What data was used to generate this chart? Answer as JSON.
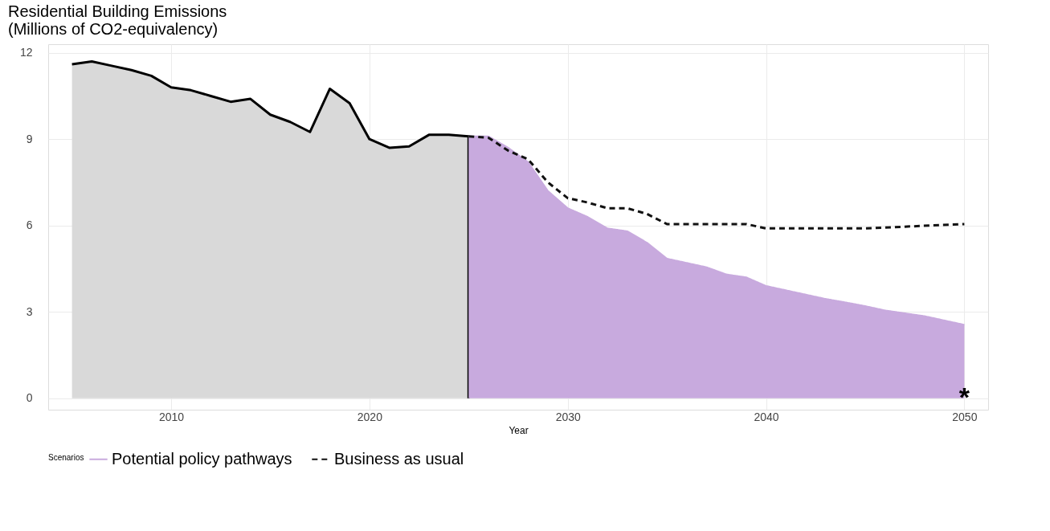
{
  "chart_data": {
    "type": "area",
    "title": [
      "Residential Building Emissions",
      "(Millions of CO2-equivalency)"
    ],
    "xlabel": "Year",
    "legend_title": "Scenarios",
    "series": [
      {
        "color": "#d9d9d9",
        "line_style": "solid",
        "x": [
          2005,
          2006,
          2007,
          2008,
          2009,
          2010,
          2011,
          2012,
          2013,
          2014,
          2015,
          2016,
          2017,
          2018,
          2019,
          2020,
          2021,
          2022,
          2023,
          2024,
          2025
        ],
        "values": [
          11.6,
          11.7,
          11.55,
          11.4,
          11.2,
          10.8,
          10.7,
          10.5,
          10.3,
          10.4,
          9.85,
          9.6,
          9.25,
          10.75,
          10.25,
          9.0,
          8.7,
          8.75,
          9.15,
          9.15,
          9.1
        ]
      },
      {
        "name": "Potential policy pathways",
        "color": "#c8aade",
        "line_style": "solid",
        "x": [
          2025,
          2026,
          2027,
          2028,
          2029,
          2030,
          2031,
          2032,
          2033,
          2034,
          2035,
          2036,
          2037,
          2038,
          2039,
          2040,
          2041,
          2042,
          2043,
          2044,
          2045,
          2046,
          2047,
          2048,
          2049,
          2050
        ],
        "values": [
          9.1,
          9.1,
          8.7,
          8.2,
          7.2,
          6.6,
          6.3,
          5.9,
          5.8,
          5.4,
          4.85,
          4.7,
          4.55,
          4.3,
          4.2,
          3.9,
          3.75,
          3.6,
          3.45,
          3.33,
          3.2,
          3.05,
          2.95,
          2.85,
          2.7,
          2.55
        ]
      },
      {
        "type": "line",
        "name": "Business as usual",
        "color": "#111111",
        "line_style": "dashed",
        "x": [
          2025,
          2026,
          2027,
          2028,
          2029,
          2030,
          2031,
          2032,
          2033,
          2034,
          2035,
          2037,
          2039,
          2040,
          2042,
          2045,
          2050
        ],
        "values": [
          9.1,
          9.05,
          8.6,
          8.3,
          7.5,
          6.95,
          6.8,
          6.6,
          6.6,
          6.4,
          6.05,
          6.05,
          6.05,
          5.9,
          5.9,
          5.9,
          6.05
        ]
      }
    ],
    "xlim": [
      2003.8,
      2051.2
    ],
    "ylim": [
      -0.4,
      12.3
    ],
    "xticks": [
      2010,
      2020,
      2030,
      2040,
      2050
    ],
    "yticks": [
      0,
      3,
      6,
      9,
      12
    ],
    "annotations": [
      {
        "text": "*",
        "x": 2050,
        "y": 0.15
      }
    ],
    "grid": true,
    "legend": "bottom"
  }
}
